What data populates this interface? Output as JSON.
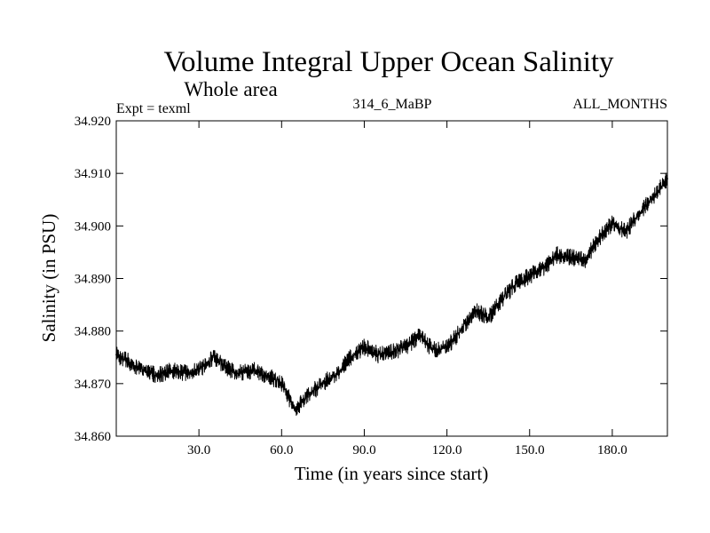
{
  "chart_data": {
    "type": "line",
    "title": "Volume Integral Upper Ocean Salinity",
    "subtitle": "Whole area",
    "experiment": "Expt = texml",
    "run_id": "314_6_MaBP",
    "months": "ALL_MONTHS",
    "xlabel": "Time (in years since start)",
    "ylabel": "Salinity (in PSU)",
    "xlim": [
      0,
      200
    ],
    "ylim": [
      34.86,
      34.92
    ],
    "xticks": [
      30,
      60,
      90,
      120,
      150,
      180
    ],
    "xtick_labels": [
      "30.0",
      "60.0",
      "90.0",
      "120.0",
      "150.0",
      "180.0"
    ],
    "yticks": [
      34.86,
      34.87,
      34.88,
      34.89,
      34.9,
      34.91,
      34.92
    ],
    "ytick_labels": [
      "34.860",
      "34.870",
      "34.880",
      "34.890",
      "34.900",
      "34.910",
      "34.920"
    ],
    "line_color": "#000000",
    "series": [
      {
        "name": "Salinity",
        "x": [
          0,
          5,
          10,
          15,
          20,
          25,
          30,
          35,
          40,
          45,
          50,
          55,
          60,
          65,
          70,
          75,
          80,
          85,
          90,
          95,
          100,
          105,
          110,
          115,
          120,
          125,
          130,
          135,
          140,
          145,
          150,
          155,
          160,
          165,
          170,
          175,
          180,
          185,
          190,
          195,
          200
        ],
        "values": [
          34.8755,
          34.874,
          34.8725,
          34.8715,
          34.8725,
          34.872,
          34.8725,
          34.875,
          34.873,
          34.872,
          34.8725,
          34.8715,
          34.87,
          34.865,
          34.868,
          34.87,
          34.872,
          34.875,
          34.877,
          34.8755,
          34.876,
          34.877,
          34.879,
          34.8765,
          34.877,
          34.88,
          34.884,
          34.8825,
          34.886,
          34.889,
          34.8905,
          34.892,
          34.8945,
          34.894,
          34.8935,
          34.8975,
          34.9005,
          34.899,
          34.9025,
          34.9055,
          34.909
        ]
      }
    ]
  }
}
